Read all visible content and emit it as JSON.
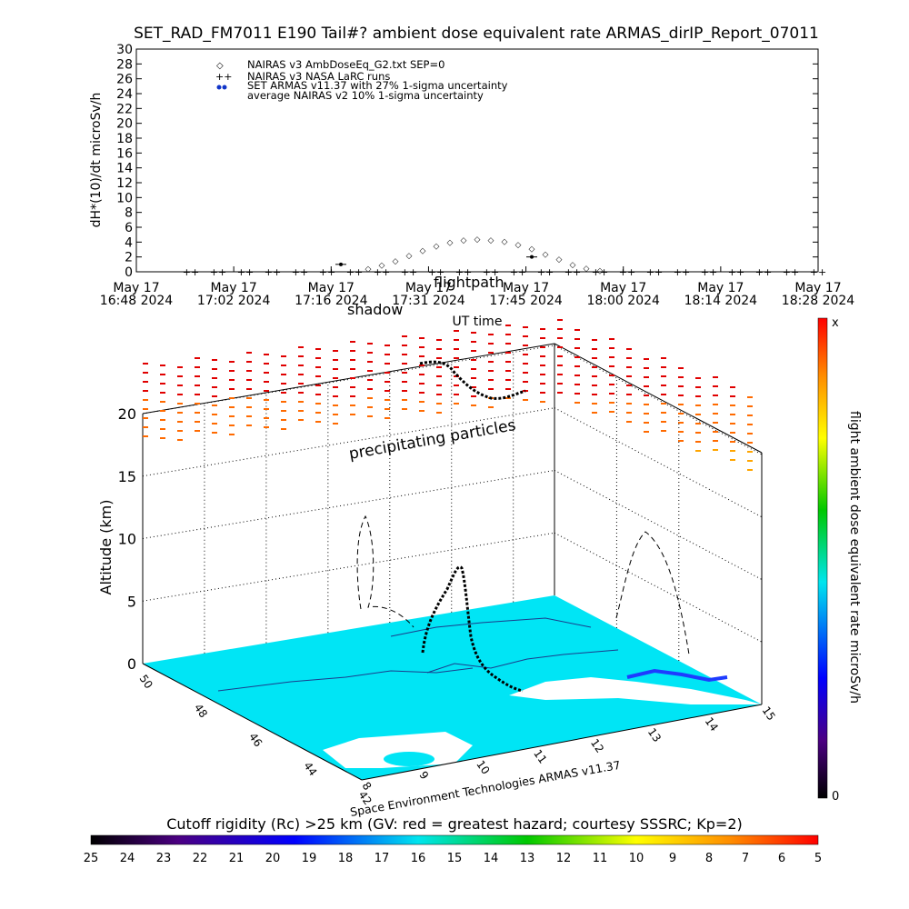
{
  "page_title": "SET_RAD_FM7011  E190 Tail#? ambient dose equivalent rate ARMAS_dirIP_Report_07011",
  "chart_data": [
    {
      "type": "scatter",
      "title": "SET_RAD_FM7011  E190 Tail#? ambient dose equivalent rate ARMAS_dirIP_Report_07011",
      "ylabel": "dH*(10)/dt microSv/h",
      "xlabel": "UT time",
      "ylim": [
        0,
        30
      ],
      "yticks": [
        "0",
        "2",
        "4",
        "6",
        "8",
        "10",
        "12",
        "14",
        "16",
        "18",
        "20",
        "22",
        "24",
        "26",
        "28",
        "30"
      ],
      "xticks": [
        "May 17\n16:48 2024",
        "May 17\n17:02 2024",
        "May 17\n17:16 2024",
        "May 17\n17:31 2024",
        "May 17\n17:45 2024",
        "May 17\n18:00 2024",
        "May 17\n18:14 2024",
        "May 17\n18:28 2024"
      ],
      "legend": [
        "NAIRAS v3 AmbDoseEq_G2.txt SEP=0",
        "NAIRAS v3 NASA LaRC runs",
        "SET ARMAS v11.37 with 27% 1-sigma uncertainty",
        "average NAIRAS v2 10% 1-sigma uncertainty"
      ],
      "legend_placement": "top-left",
      "overlay_labels": [
        "shadow",
        "flightpath"
      ],
      "x_minutes": [
        8,
        12,
        16,
        20,
        24,
        28,
        32,
        36,
        40,
        44,
        48,
        52,
        56,
        60,
        64,
        68,
        72,
        76,
        80,
        84,
        88,
        92,
        96,
        100
      ],
      "series": [
        {
          "name": "NAIRAS v3 AmbDoseEq_G2.txt SEP=0",
          "marker": "diamond",
          "x": [
            34,
            36,
            38,
            40,
            42,
            44,
            46,
            48,
            50,
            52,
            54,
            56,
            58,
            60,
            62,
            64,
            66,
            68
          ],
          "values": [
            0.4,
            0.9,
            1.5,
            2.2,
            2.9,
            3.5,
            4.0,
            4.3,
            4.4,
            4.3,
            4.1,
            3.7,
            3.1,
            2.4,
            1.7,
            1.0,
            0.5,
            0.2
          ]
        },
        {
          "name": "SET ARMAS v11.37 with 27% 1-sigma uncertainty",
          "marker": "dot",
          "x": [
            30,
            58
          ],
          "values": [
            1.0,
            2.0
          ]
        }
      ],
      "baseline_value": 0
    },
    {
      "type": "scatter",
      "title": "3D flight path",
      "zlabel": "Altitude (km)",
      "zlim": [
        0,
        20
      ],
      "zticks": [
        "0",
        "5",
        "10",
        "15",
        "20"
      ],
      "lat_ticks": [
        "42",
        "44",
        "46",
        "48",
        "50"
      ],
      "lon_ticks": [
        "8",
        "9",
        "10",
        "11",
        "12",
        "13",
        "14",
        "15"
      ],
      "annotations": [
        "precipitating particles",
        "Space Environment Technologies ARMAS v11.37"
      ]
    }
  ],
  "colorbar_right": {
    "label": "flight ambient dose equivalent rate microSv/h",
    "top_label": "x",
    "bottom_label": "0"
  },
  "colorbar_bottom": {
    "label": "Cutoff rigidity (Rc) >25 km (GV: red = greatest hazard; courtesy SSSRC; Kp=2)",
    "ticks": [
      "25",
      "24",
      "23",
      "22",
      "21",
      "20",
      "19",
      "18",
      "17",
      "16",
      "15",
      "14",
      "13",
      "12",
      "11",
      "10",
      "9",
      "8",
      "7",
      "6",
      "5"
    ]
  }
}
